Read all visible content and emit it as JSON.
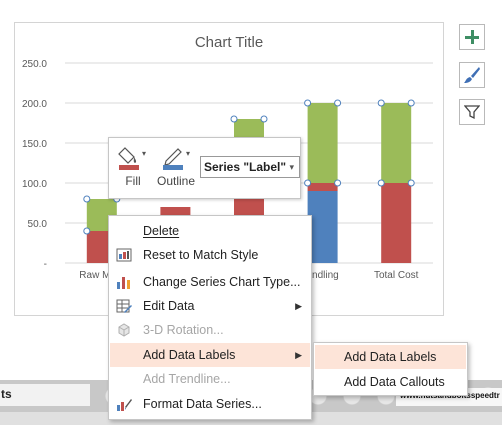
{
  "chart_data": {
    "type": "bar",
    "stacked": true,
    "title": "Chart Title",
    "categories": [
      "Raw Mate",
      "",
      "",
      "andling",
      "Total Cost"
    ],
    "y_ticks": [
      "250.0",
      "200.0",
      "150.0",
      "100.0",
      "50.0",
      "-"
    ],
    "ylim": [
      0,
      250
    ],
    "grid": true,
    "series": [
      {
        "color": "#4f81bd",
        "values": [
          0,
          0,
          0,
          90,
          0
        ]
      },
      {
        "color": "#c0504d",
        "values": [
          40,
          70,
          120,
          10,
          100
        ]
      },
      {
        "color": "#9bbb59",
        "values": [
          40,
          0,
          60,
          100,
          100
        ]
      }
    ]
  },
  "side_buttons": [
    {
      "icon": "plus-icon",
      "label": "+"
    },
    {
      "icon": "paintbrush-icon"
    },
    {
      "icon": "filter-icon"
    }
  ],
  "mini_toolbar": {
    "fill_label": "Fill",
    "outline_label": "Outline",
    "series_select": "Series \"Label\""
  },
  "context_menu": {
    "items": [
      {
        "label": "Delete",
        "icon": "none",
        "enabled": true
      },
      {
        "label": "Reset to Match Style",
        "icon": "reset-style-icon",
        "enabled": true
      },
      {
        "label": "Change Series Chart Type...",
        "icon": "chart-type-icon",
        "enabled": true
      },
      {
        "label": "Edit Data",
        "icon": "edit-data-icon",
        "enabled": true,
        "submenu": true
      },
      {
        "label": "3-D Rotation...",
        "icon": "rotation-icon",
        "enabled": false
      },
      {
        "label": "Add Data Labels",
        "icon": "none",
        "enabled": true,
        "submenu": true,
        "highlighted": true
      },
      {
        "label": "Add Trendline...",
        "icon": "none",
        "enabled": false
      },
      {
        "label": "Format Data Series...",
        "icon": "format-series-icon",
        "enabled": true
      }
    ]
  },
  "submenu": {
    "items": [
      {
        "label": "Add Data Labels",
        "highlighted": true
      },
      {
        "label": "Add Data Callouts",
        "highlighted": false
      }
    ]
  },
  "background": {
    "left_text": "ts",
    "right_text": "www.nutsandboltsspeedtr"
  },
  "colors": {
    "menu_highlight": "#fde4d8",
    "series_blue": "#4f81bd",
    "series_red": "#c0504d",
    "series_green": "#9bbb59"
  }
}
